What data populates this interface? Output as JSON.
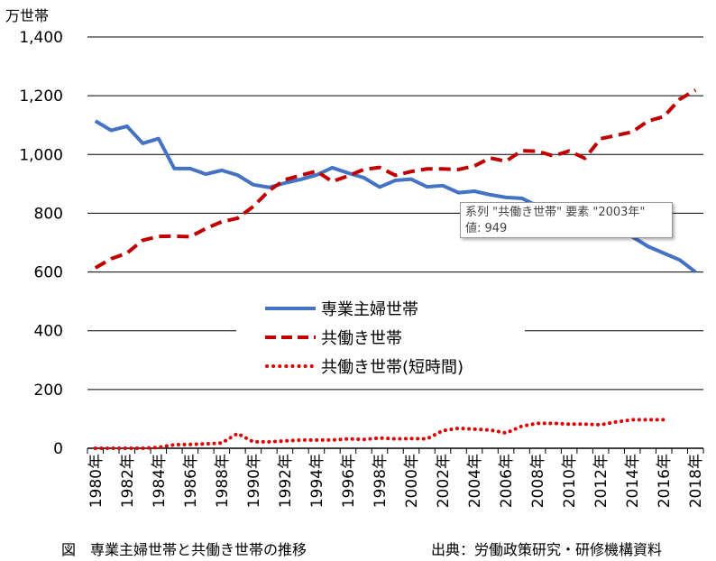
{
  "chart_data": {
    "type": "line",
    "unit_label": "万世帯",
    "ylim": [
      0,
      1400
    ],
    "yticks": [
      0,
      200,
      400,
      600,
      800,
      1000,
      1200,
      1400
    ],
    "ytick_labels": [
      "0",
      "200",
      "400",
      "600",
      "800",
      "1,000",
      "1,200",
      "1,400"
    ],
    "x": [
      1980,
      1981,
      1982,
      1983,
      1984,
      1985,
      1986,
      1987,
      1988,
      1989,
      1990,
      1991,
      1992,
      1993,
      1994,
      1995,
      1996,
      1997,
      1998,
      1999,
      2000,
      2001,
      2002,
      2003,
      2004,
      2005,
      2006,
      2007,
      2008,
      2009,
      2010,
      2011,
      2012,
      2013,
      2014,
      2015,
      2016,
      2017,
      2018
    ],
    "xtick_labels": [
      "1980年",
      "1982年",
      "1984年",
      "1986年",
      "1988年",
      "1990年",
      "1992年",
      "1994年",
      "1996年",
      "1998年",
      "2000年",
      "2002年",
      "2004年",
      "2006年",
      "2008年",
      "2010年",
      "2012年",
      "2014年",
      "2016年",
      "2018年"
    ],
    "series": [
      {
        "name": "専業主婦世帯",
        "color": "#4472C4",
        "style": "solid",
        "values": [
          1114,
          1082,
          1096,
          1038,
          1054,
          952,
          952,
          933,
          946,
          930,
          897,
          888,
          903,
          915,
          930,
          955,
          937,
          921,
          889,
          912,
          916,
          890,
          894,
          870,
          875,
          863,
          854,
          851,
          825,
          831,
          797,
          773,
          787,
          745,
          720,
          687,
          664,
          641,
          600
        ]
      },
      {
        "name": "共働き世帯",
        "color": "#C00000",
        "style": "dashed",
        "values": [
          614,
          645,
          664,
          708,
          721,
          722,
          720,
          748,
          771,
          783,
          823,
          877,
          914,
          929,
          943,
          908,
          927,
          949,
          956,
          929,
          942,
          951,
          951,
          949,
          961,
          988,
          977,
          1013,
          1011,
          995,
          1012,
          987,
          1054,
          1065,
          1077,
          1114,
          1129,
          1188,
          1219
        ]
      },
      {
        "name": "共働き世帯(短時間)",
        "color": "#E00000",
        "style": "dotted",
        "values": [
          0,
          0,
          0,
          0,
          3,
          12,
          13,
          15,
          18,
          50,
          22,
          22,
          25,
          28,
          28,
          28,
          32,
          30,
          35,
          32,
          33,
          32,
          60,
          68,
          65,
          62,
          52,
          75,
          85,
          85,
          82,
          82,
          80,
          90,
          97,
          97,
          97,
          null,
          null
        ]
      }
    ],
    "legend_position": "center"
  },
  "tooltip": {
    "line1": "系列 \"共働き世帯\" 要素 \"2003年\"",
    "line2": "値: 949"
  },
  "caption_left": "図　専業主婦世帯と共働き世帯の推移",
  "caption_right": "出典：労働政策研究・研修機構資料"
}
